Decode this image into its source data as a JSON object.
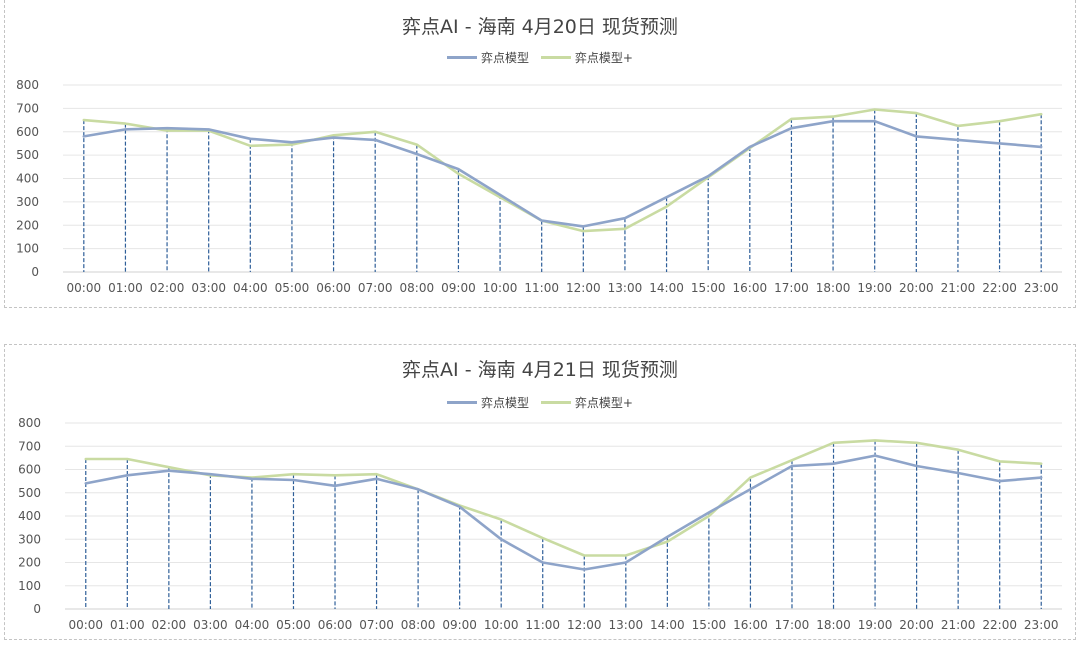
{
  "colors": {
    "series1": "#8ea4c9",
    "series2": "#c9dba2",
    "droplines": "#2f5f99",
    "grid": "#e6e6e6"
  },
  "chart_data": [
    {
      "type": "line",
      "title": "弈点AI - 海南 4月20日 现货预测",
      "xlabel": "",
      "ylabel": "",
      "ylim": [
        0,
        800
      ],
      "yticks": [
        "0",
        "100",
        "200",
        "300",
        "400",
        "500",
        "600",
        "700",
        "800"
      ],
      "legend": "top-center",
      "droplines": true,
      "categories": [
        "00:00",
        "01:00",
        "02:00",
        "03:00",
        "04:00",
        "05:00",
        "06:00",
        "07:00",
        "08:00",
        "09:00",
        "10:00",
        "11:00",
        "12:00",
        "13:00",
        "14:00",
        "15:00",
        "16:00",
        "17:00",
        "18:00",
        "19:00",
        "20:00",
        "21:00",
        "22:00",
        "23:00"
      ],
      "series": [
        {
          "name": "弈点模型",
          "values": [
            580,
            610,
            615,
            610,
            570,
            555,
            575,
            565,
            505,
            440,
            330,
            220,
            195,
            230,
            320,
            410,
            535,
            615,
            645,
            645,
            580,
            565,
            550,
            535
          ]
        },
        {
          "name": "弈点模型+",
          "values": [
            650,
            635,
            605,
            605,
            540,
            545,
            585,
            600,
            545,
            420,
            320,
            220,
            175,
            185,
            280,
            405,
            530,
            655,
            665,
            695,
            680,
            625,
            645,
            675
          ]
        }
      ]
    },
    {
      "type": "line",
      "title": "弈点AI - 海南 4月21日 现货预测",
      "xlabel": "",
      "ylabel": "",
      "ylim": [
        0,
        800
      ],
      "yticks": [
        "0",
        "100",
        "200",
        "300",
        "400",
        "500",
        "600",
        "700",
        "800"
      ],
      "legend": "top-center",
      "droplines": true,
      "categories": [
        "00:00",
        "01:00",
        "02:00",
        "03:00",
        "04:00",
        "05:00",
        "06:00",
        "07:00",
        "08:00",
        "09:00",
        "10:00",
        "11:00",
        "12:00",
        "13:00",
        "14:00",
        "15:00",
        "16:00",
        "17:00",
        "18:00",
        "19:00",
        "20:00",
        "21:00",
        "22:00",
        "23:00"
      ],
      "series": [
        {
          "name": "弈点模型",
          "values": [
            540,
            575,
            595,
            580,
            560,
            555,
            530,
            560,
            515,
            440,
            300,
            200,
            170,
            200,
            310,
            415,
            515,
            615,
            625,
            660,
            615,
            585,
            550,
            565
          ]
        },
        {
          "name": "弈点模型+",
          "values": [
            645,
            645,
            610,
            575,
            565,
            580,
            575,
            580,
            515,
            445,
            385,
            305,
            230,
            230,
            290,
            400,
            565,
            640,
            715,
            725,
            715,
            685,
            635,
            625
          ]
        }
      ]
    }
  ]
}
